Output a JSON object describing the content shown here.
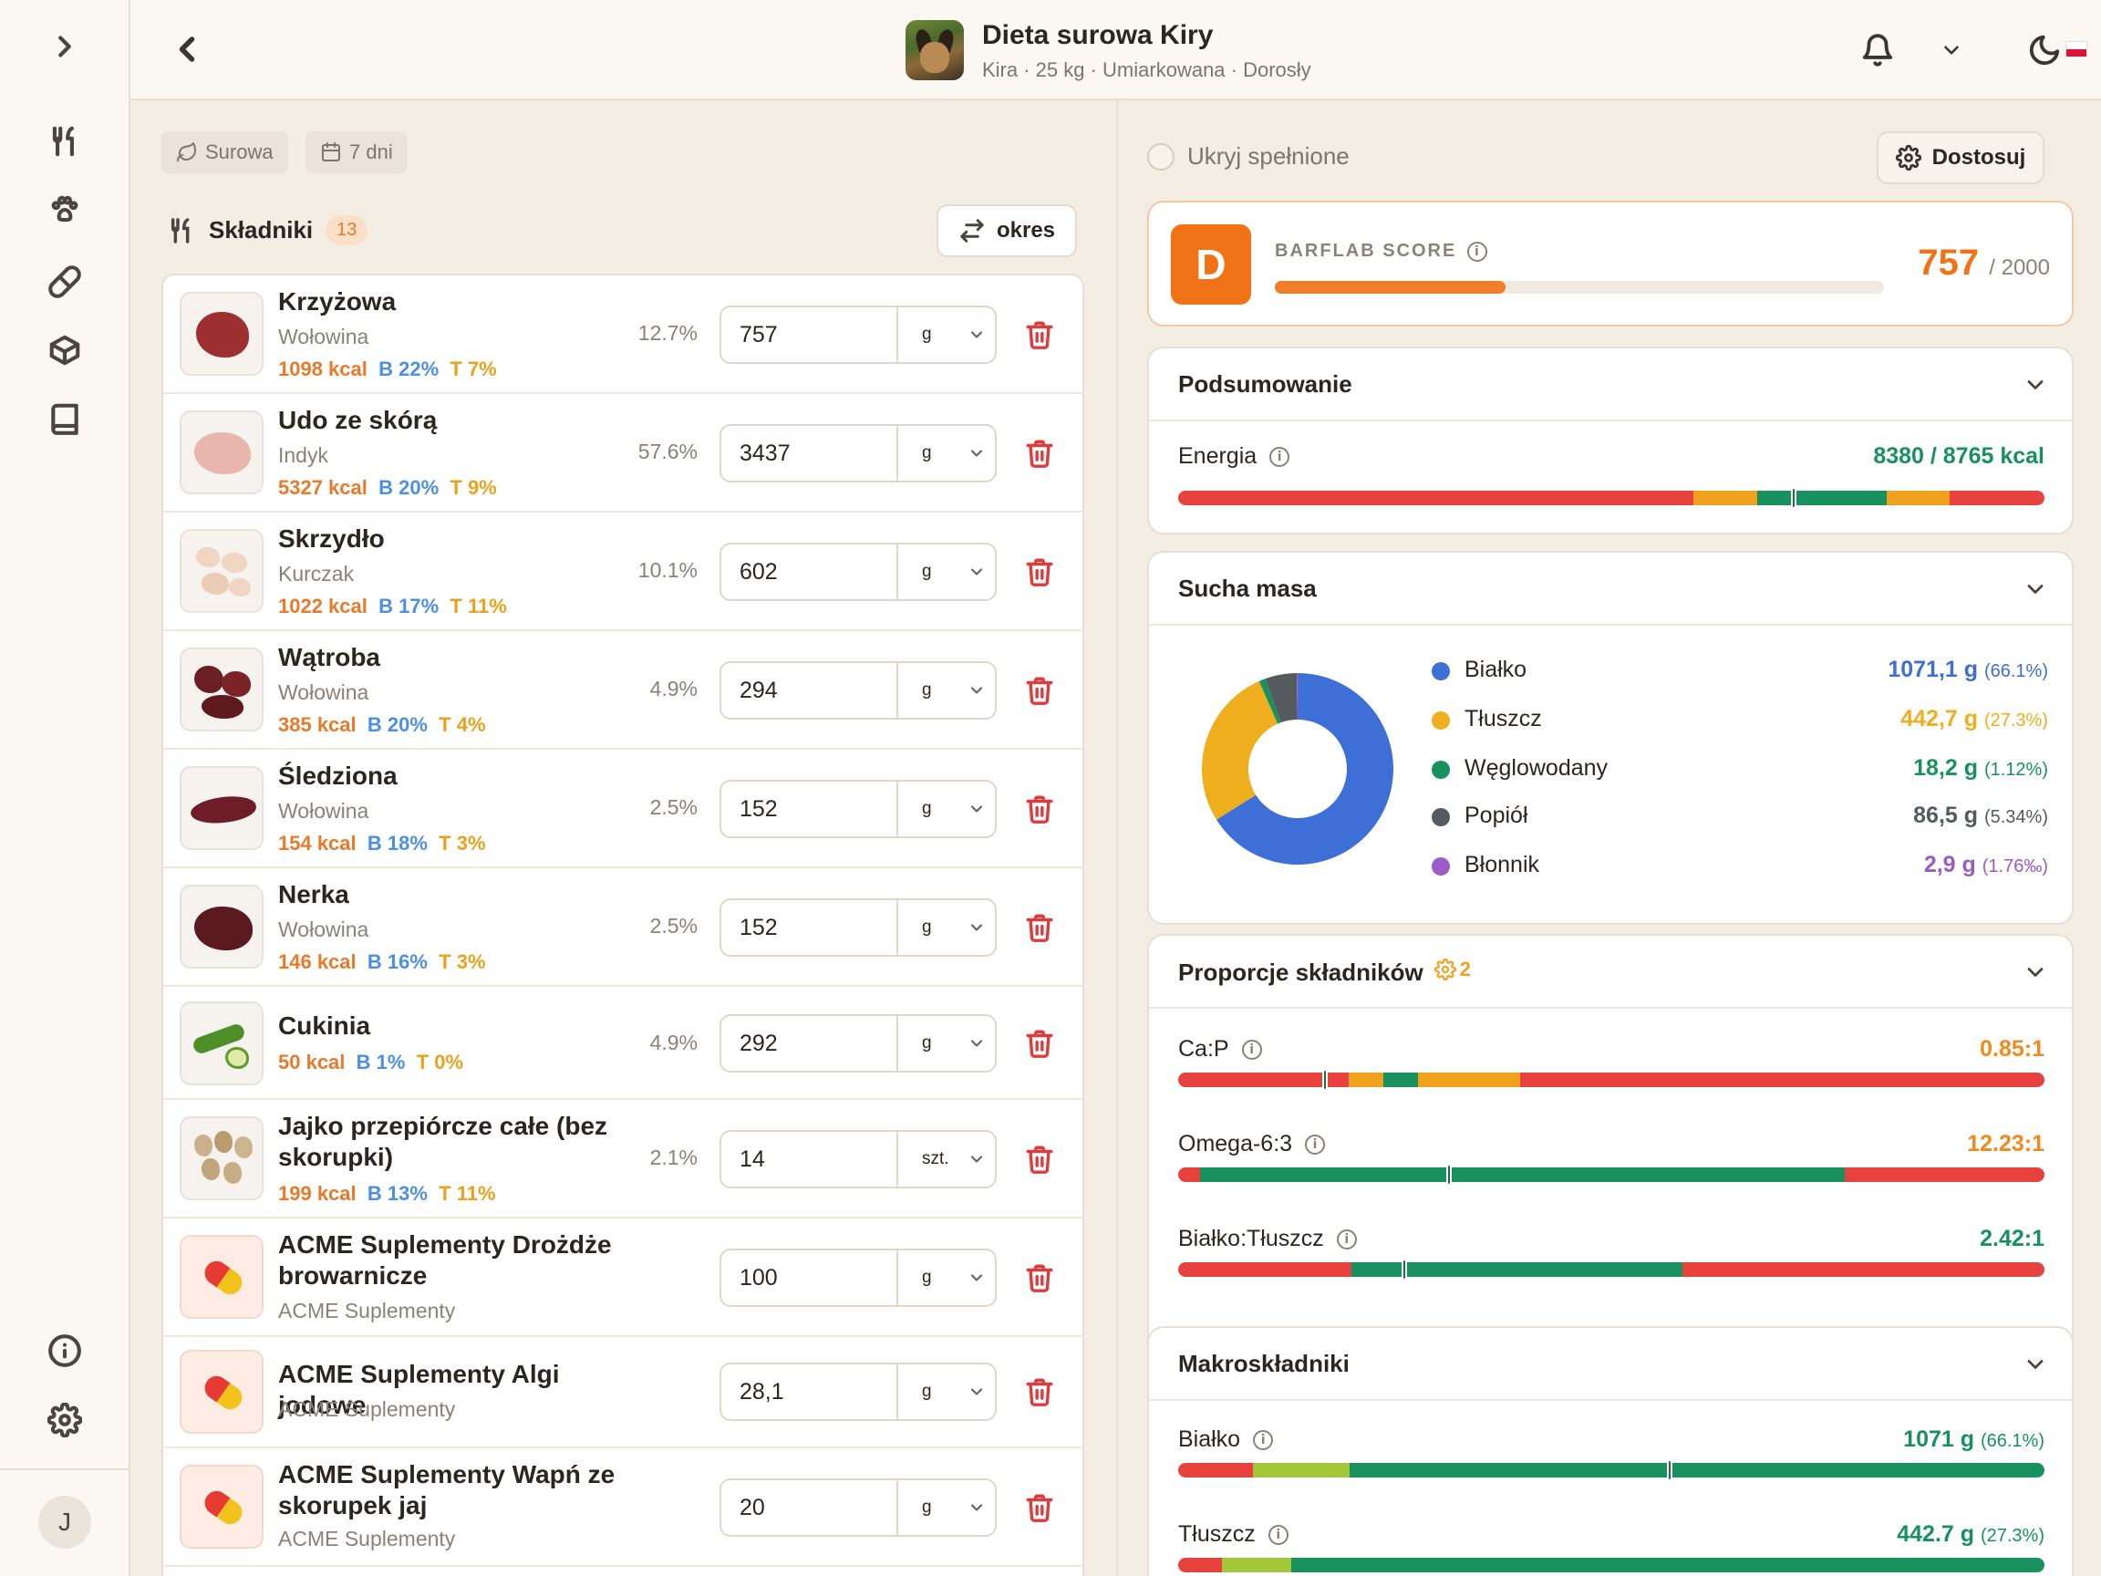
{
  "header": {
    "title": "Dieta surowa Kiry",
    "subtitle": "Kira · 25 kg · Umiarkowana · Dorosły"
  },
  "filters": {
    "diet_chip": "Surowa",
    "days_chip": "7 dni",
    "ingredients_label": "Składniki",
    "ingredients_count": "13",
    "period_button": "okres"
  },
  "ingredients": [
    {
      "name": "Krzyżowa",
      "sub": "Wołowina",
      "kcal": "1098 kcal",
      "b": "B 22%",
      "t": "T 7%",
      "pct": "12.7%",
      "qty": "757",
      "unit": "g"
    },
    {
      "name": "Udo ze skórą",
      "sub": "Indyk",
      "kcal": "5327 kcal",
      "b": "B 20%",
      "t": "T 9%",
      "pct": "57.6%",
      "qty": "3437",
      "unit": "g"
    },
    {
      "name": "Skrzydło",
      "sub": "Kurczak",
      "kcal": "1022 kcal",
      "b": "B 17%",
      "t": "T 11%",
      "pct": "10.1%",
      "qty": "602",
      "unit": "g"
    },
    {
      "name": "Wątroba",
      "sub": "Wołowina",
      "kcal": "385 kcal",
      "b": "B 20%",
      "t": "T 4%",
      "pct": "4.9%",
      "qty": "294",
      "unit": "g"
    },
    {
      "name": "Śledziona",
      "sub": "Wołowina",
      "kcal": "154 kcal",
      "b": "B 18%",
      "t": "T 3%",
      "pct": "2.5%",
      "qty": "152",
      "unit": "g"
    },
    {
      "name": "Nerka",
      "sub": "Wołowina",
      "kcal": "146 kcal",
      "b": "B 16%",
      "t": "T 3%",
      "pct": "2.5%",
      "qty": "152",
      "unit": "g"
    },
    {
      "name": "Cukinia",
      "kcal": "50 kcal",
      "b": "B 1%",
      "t": "T 0%",
      "pct": "4.9%",
      "qty": "292",
      "unit": "g"
    },
    {
      "name": "Jajko przepiórcze całe (bez skorupki)",
      "kcal": "199 kcal",
      "b": "B 13%",
      "t": "T 11%",
      "pct": "2.1%",
      "qty": "14",
      "unit": "szt."
    },
    {
      "name": "ACME Suplementy Drożdże browarnicze",
      "sub": "ACME Suplementy",
      "qty": "100",
      "unit": "g"
    },
    {
      "name": "ACME Suplementy Algi jodowe",
      "sub": "ACME Suplementy",
      "qty": "28,1",
      "unit": "g"
    },
    {
      "name": "ACME Suplementy Wapń ze skorupek jaj",
      "sub": "ACME Suplementy",
      "qty": "20",
      "unit": "g"
    }
  ],
  "right": {
    "hide_label": "Ukryj spełnione",
    "customize_button": "Dostosuj",
    "score": {
      "grade": "D",
      "label": "BARFLAB SCORE",
      "value": "757",
      "max": "/ 2000",
      "fraction": 0.3785,
      "color": "#f07318"
    },
    "summary": {
      "title": "Podsumowanie",
      "energy_label": "Energia",
      "energy_value": "8380 / 8765 kcal"
    },
    "dry_matter": {
      "title": "Sucha masa",
      "items": [
        {
          "name": "Białko",
          "value": "1071,1 g",
          "pct": "(66.1%)",
          "color": "#3d6fd6"
        },
        {
          "name": "Tłuszcz",
          "value": "442,7 g",
          "pct": "(27.3%)",
          "color": "#eeae1e"
        },
        {
          "name": "Węglowodany",
          "value": "18,2 g",
          "pct": "(1.12%)",
          "color": "#18915f"
        },
        {
          "name": "Popiół",
          "value": "86,5 g",
          "pct": "(5.34%)",
          "color": "#555a5f"
        },
        {
          "name": "Błonnik",
          "value": "2,9 g",
          "pct": "(1.76‰)",
          "color": "#9b5cc8"
        }
      ]
    },
    "proportions": {
      "title": "Proporcje składników",
      "settings_count": "2",
      "items": [
        {
          "label": "Ca:P",
          "value": "0.85:1",
          "color": "#f08a1c"
        },
        {
          "label": "Omega-6:3",
          "value": "12.23:1",
          "color": "#f08a1c"
        },
        {
          "label": "Białko:Tłuszcz",
          "value": "2.42:1",
          "color": "#18915f"
        }
      ]
    },
    "macros": {
      "title": "Makroskładniki",
      "items": [
        {
          "label": "Białko",
          "value": "1071 g",
          "pct": "(66.1%)"
        },
        {
          "label": "Tłuszcz",
          "value": "442.7 g",
          "pct": "(27.3%)"
        }
      ]
    }
  }
}
